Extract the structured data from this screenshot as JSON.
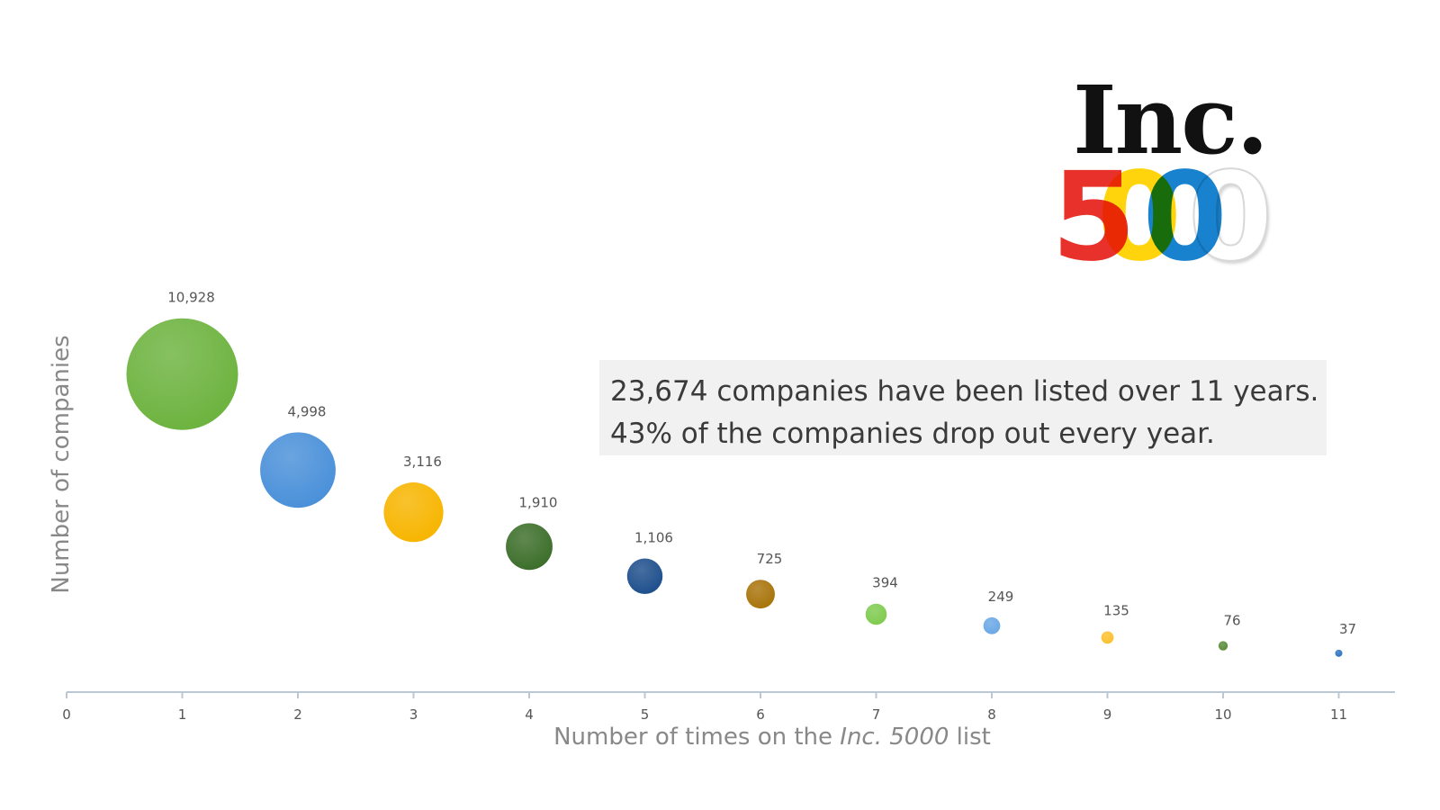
{
  "logo": {
    "word": "Inc.",
    "digits": [
      "5",
      "0",
      "0",
      "0"
    ]
  },
  "callout": {
    "line1": "23,674 companies have been listed over 11 years.",
    "line2": "43% of the companies drop out every year."
  },
  "chart_data": {
    "type": "scatter",
    "xlabel_pre": "Number of times on the ",
    "xlabel_italic": "Inc. 5000",
    "xlabel_post": " list",
    "ylabel": "Number of companies",
    "x_ticks": [
      "0",
      "1",
      "2",
      "3",
      "4",
      "5",
      "6",
      "7",
      "8",
      "9",
      "10",
      "11"
    ],
    "xlim": [
      0,
      11.5
    ],
    "grid": false,
    "points": [
      {
        "x": 1,
        "value": 10928,
        "label": "10,928",
        "color": "#6db33f"
      },
      {
        "x": 2,
        "value": 4998,
        "label": "4,998",
        "color": "#4a90d9"
      },
      {
        "x": 3,
        "value": 3116,
        "label": "3,116",
        "color": "#f7b500"
      },
      {
        "x": 4,
        "value": 1910,
        "label": "1,910",
        "color": "#3c6e2a"
      },
      {
        "x": 5,
        "value": 1106,
        "label": "1,106",
        "color": "#1e4f8c"
      },
      {
        "x": 6,
        "value": 725,
        "label": "725",
        "color": "#a8740a"
      },
      {
        "x": 7,
        "value": 394,
        "label": "394",
        "color": "#7fcb4f"
      },
      {
        "x": 8,
        "value": 249,
        "label": "249",
        "color": "#6aa8e6"
      },
      {
        "x": 9,
        "value": 135,
        "label": "135",
        "color": "#fbc02d"
      },
      {
        "x": 10,
        "value": 76,
        "label": "76",
        "color": "#5b8c3a"
      },
      {
        "x": 11,
        "value": 37,
        "label": "37",
        "color": "#2f74c0"
      }
    ]
  }
}
